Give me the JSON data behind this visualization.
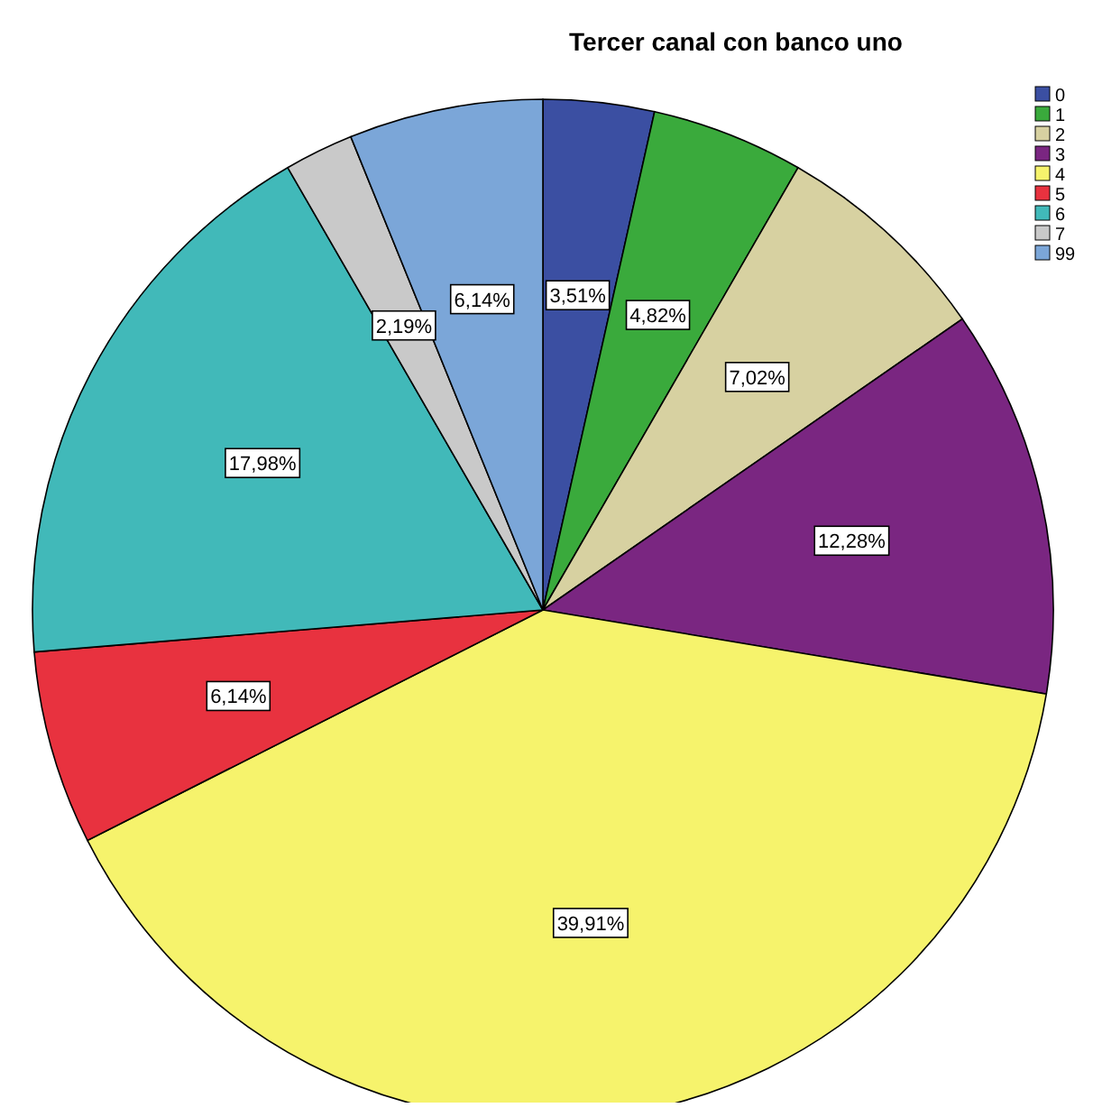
{
  "chart_data": {
    "type": "pie",
    "title": "Tercer canal con banco uno",
    "categories": [
      "0",
      "1",
      "2",
      "3",
      "4",
      "5",
      "6",
      "7",
      "99"
    ],
    "values": [
      3.51,
      4.82,
      7.02,
      12.28,
      39.91,
      6.14,
      17.98,
      2.19,
      6.14
    ],
    "value_labels": [
      "3,51%",
      "4,82%",
      "7,02%",
      "12,28%",
      "39,91%",
      "6,14%",
      "17,98%",
      "2,19%",
      "6,14%"
    ],
    "colors": [
      "#3b4fa2",
      "#3aaa3c",
      "#d7d1a1",
      "#7a2681",
      "#f6f36c",
      "#e8323f",
      "#41b9b9",
      "#c9c9c9",
      "#7ba6d8"
    ],
    "legend": "top right"
  }
}
